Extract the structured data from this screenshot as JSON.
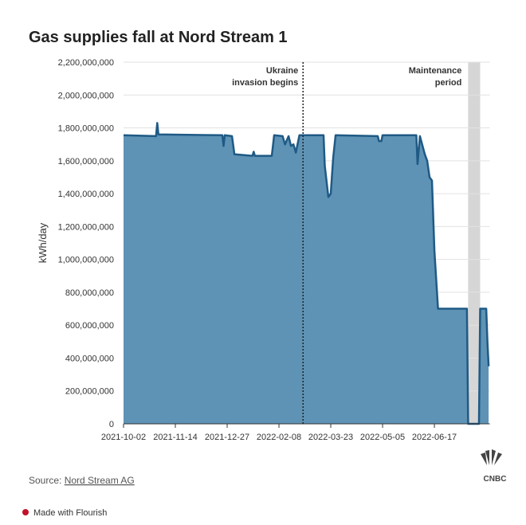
{
  "chart_data": {
    "type": "area",
    "title": "Gas supplies fall at Nord Stream 1",
    "y_label": "kWh/day",
    "color": "#5e93b5",
    "line_color": "#1f5a85",
    "x": [
      "2021-10-02",
      "2021-10-29",
      "2021-10-30",
      "2021-10-31",
      "2021-12-23",
      "2021-12-24",
      "2021-12-25",
      "2021-12-31",
      "2022-01-02",
      "2022-01-17",
      "2022-01-18",
      "2022-01-19",
      "2022-02-02",
      "2022-02-04",
      "2022-02-11",
      "2022-02-13",
      "2022-02-16",
      "2022-02-18",
      "2022-02-20",
      "2022-02-22",
      "2022-02-25",
      "2022-03-17",
      "2022-03-18",
      "2022-03-21",
      "2022-03-23",
      "2022-03-25",
      "2022-03-27",
      "2022-05-01",
      "2022-05-02",
      "2022-05-04",
      "2022-05-05",
      "2022-06-02",
      "2022-06-03",
      "2022-06-05",
      "2022-06-09",
      "2022-06-11",
      "2022-06-13",
      "2022-06-15",
      "2022-06-17",
      "2022-06-20",
      "2022-07-14",
      "2022-07-15",
      "2022-07-24",
      "2022-07-25",
      "2022-07-30",
      "2022-07-31",
      "2022-08-01"
    ],
    "values": [
      1755000000,
      1750000000,
      1830000000,
      1760000000,
      1755000000,
      1690000000,
      1755000000,
      1750000000,
      1640000000,
      1630000000,
      1655000000,
      1630000000,
      1630000000,
      1755000000,
      1750000000,
      1700000000,
      1750000000,
      1690000000,
      1700000000,
      1650000000,
      1755000000,
      1755000000,
      1570000000,
      1380000000,
      1400000000,
      1620000000,
      1755000000,
      1750000000,
      1720000000,
      1720000000,
      1755000000,
      1755000000,
      1580000000,
      1750000000,
      1640000000,
      1600000000,
      1500000000,
      1480000000,
      1050000000,
      700000000,
      700000000,
      0,
      0,
      700000000,
      700000000,
      500000000,
      350000000
    ],
    "xlim": [
      "2021-10-02",
      "2022-08-02"
    ],
    "xticks": [
      "2021-10-02",
      "2021-11-14",
      "2021-12-27",
      "2022-02-08",
      "2022-03-23",
      "2022-05-05",
      "2022-06-17"
    ],
    "ylim": [
      0,
      2200000000
    ],
    "yticks": [
      0,
      {
        "value": 200000000,
        "label": "200,000,000"
      },
      {
        "value": 400000000,
        "label": "400,000,000"
      },
      {
        "value": 600000000,
        "label": "600,000,000"
      },
      {
        "value": 800000000,
        "label": "800,000,000"
      },
      {
        "value": 1000000000,
        "label": "1,000,000,000"
      },
      {
        "value": 1200000000,
        "label": "1,200,000,000"
      },
      {
        "value": 1400000000,
        "label": "1,400,000,000"
      },
      {
        "value": 1600000000,
        "label": "1,600,000,000"
      },
      {
        "value": 1800000000,
        "label": "1,800,000,000"
      },
      {
        "value": 2000000000,
        "label": "2,000,000,000"
      },
      {
        "value": 2200000000,
        "label": "2,200,000,000"
      }
    ],
    "grid": true,
    "marker_line": {
      "x": "2022-02-28",
      "label": [
        "Ukraine",
        "invasion begins"
      ]
    },
    "band": {
      "x": [
        "2022-07-15",
        "2022-07-25"
      ],
      "label": [
        "Maintenance",
        "period"
      ]
    }
  },
  "footer": {
    "source_prefix": "Source:",
    "source_link": "Nord Stream AG",
    "made_with": "Made with Flourish",
    "logo": "CNBC"
  }
}
